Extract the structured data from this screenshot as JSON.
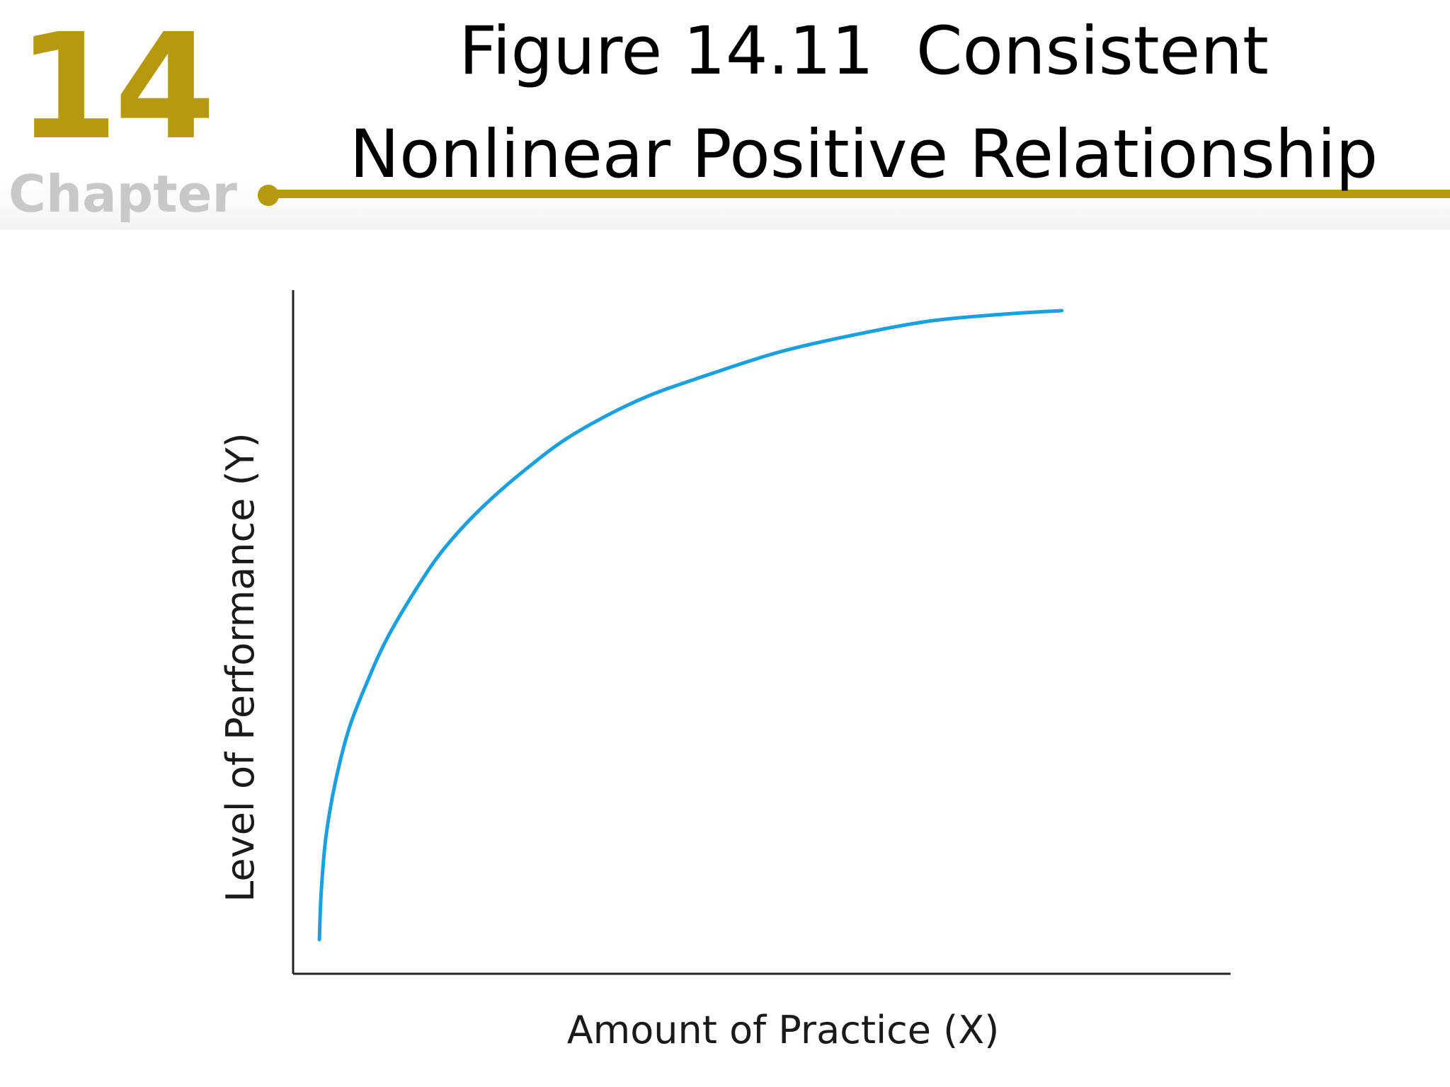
{
  "slide": {
    "chapter_number": "14",
    "chapter_word": "Chapter",
    "title_lines": [
      "Figure 14.11  Consistent",
      "Nonlinear Positive Relationship"
    ]
  },
  "colors": {
    "accent": "#b59a10",
    "chapter_word": "#c8c8c8",
    "curve": "#1aa0e0",
    "axis": "#222222"
  },
  "chart_data": {
    "type": "line",
    "title": "Figure 14.11  Consistent Nonlinear Positive Relationship",
    "xlabel": "Amount of Practice (X)",
    "ylabel": "Level of Performance (Y)",
    "x_ticks": "none",
    "y_ticks": "none",
    "grid": false,
    "xlim": [
      0,
      1
    ],
    "ylim": [
      0,
      1
    ],
    "series": [
      {
        "x": [
          0.028,
          0.03,
          0.035,
          0.045,
          0.06,
          0.08,
          0.1,
          0.13,
          0.16,
          0.2,
          0.25,
          0.3,
          0.37,
          0.44,
          0.52,
          0.6,
          0.68,
          0.76,
          0.82
        ],
        "values": [
          0.05,
          0.12,
          0.2,
          0.28,
          0.36,
          0.43,
          0.49,
          0.56,
          0.62,
          0.68,
          0.74,
          0.79,
          0.84,
          0.875,
          0.91,
          0.935,
          0.955,
          0.965,
          0.97
        ]
      }
    ]
  }
}
